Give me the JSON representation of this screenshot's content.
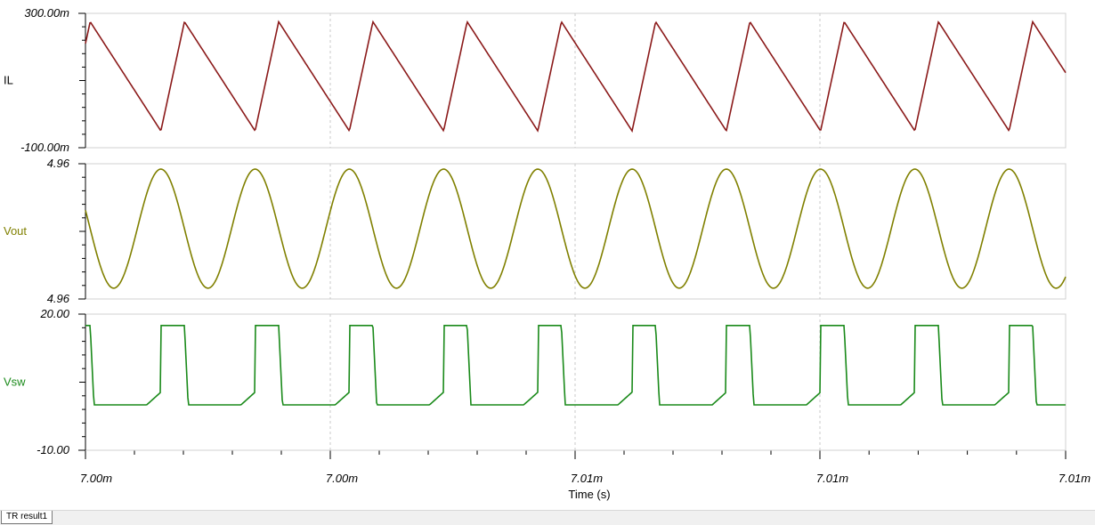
{
  "chart_data": {
    "type": "line",
    "xlabel": "Time (s)",
    "x_tick_labels": [
      "7.00m",
      "7.00m",
      "7.01m",
      "7.01m",
      "7.01m"
    ],
    "panels": [
      {
        "name": "IL",
        "ylim_labels": [
          "300.00m",
          "-100.00m"
        ],
        "ylim": [
          -0.1,
          0.3
        ],
        "color": "#8b1a1a",
        "waveform": "sawtooth",
        "periods": 10.4,
        "peak": 0.275,
        "trough": -0.05
      },
      {
        "name": "Vout",
        "ylim_labels": [
          "4.96",
          "4.96"
        ],
        "color": "#808000",
        "waveform": "sine",
        "periods": 10.4,
        "peak_norm": 0.96,
        "trough_norm": 0.08
      },
      {
        "name": "Vsw",
        "ylim_labels": [
          "20.00",
          "-10.00"
        ],
        "ylim": [
          -10,
          20
        ],
        "color": "#1a8a1a",
        "waveform": "pulse",
        "periods": 10.4,
        "high": 17.5,
        "low": 0.0
      }
    ],
    "grid": true
  },
  "tabs": [
    {
      "label": "TR result1"
    }
  ]
}
